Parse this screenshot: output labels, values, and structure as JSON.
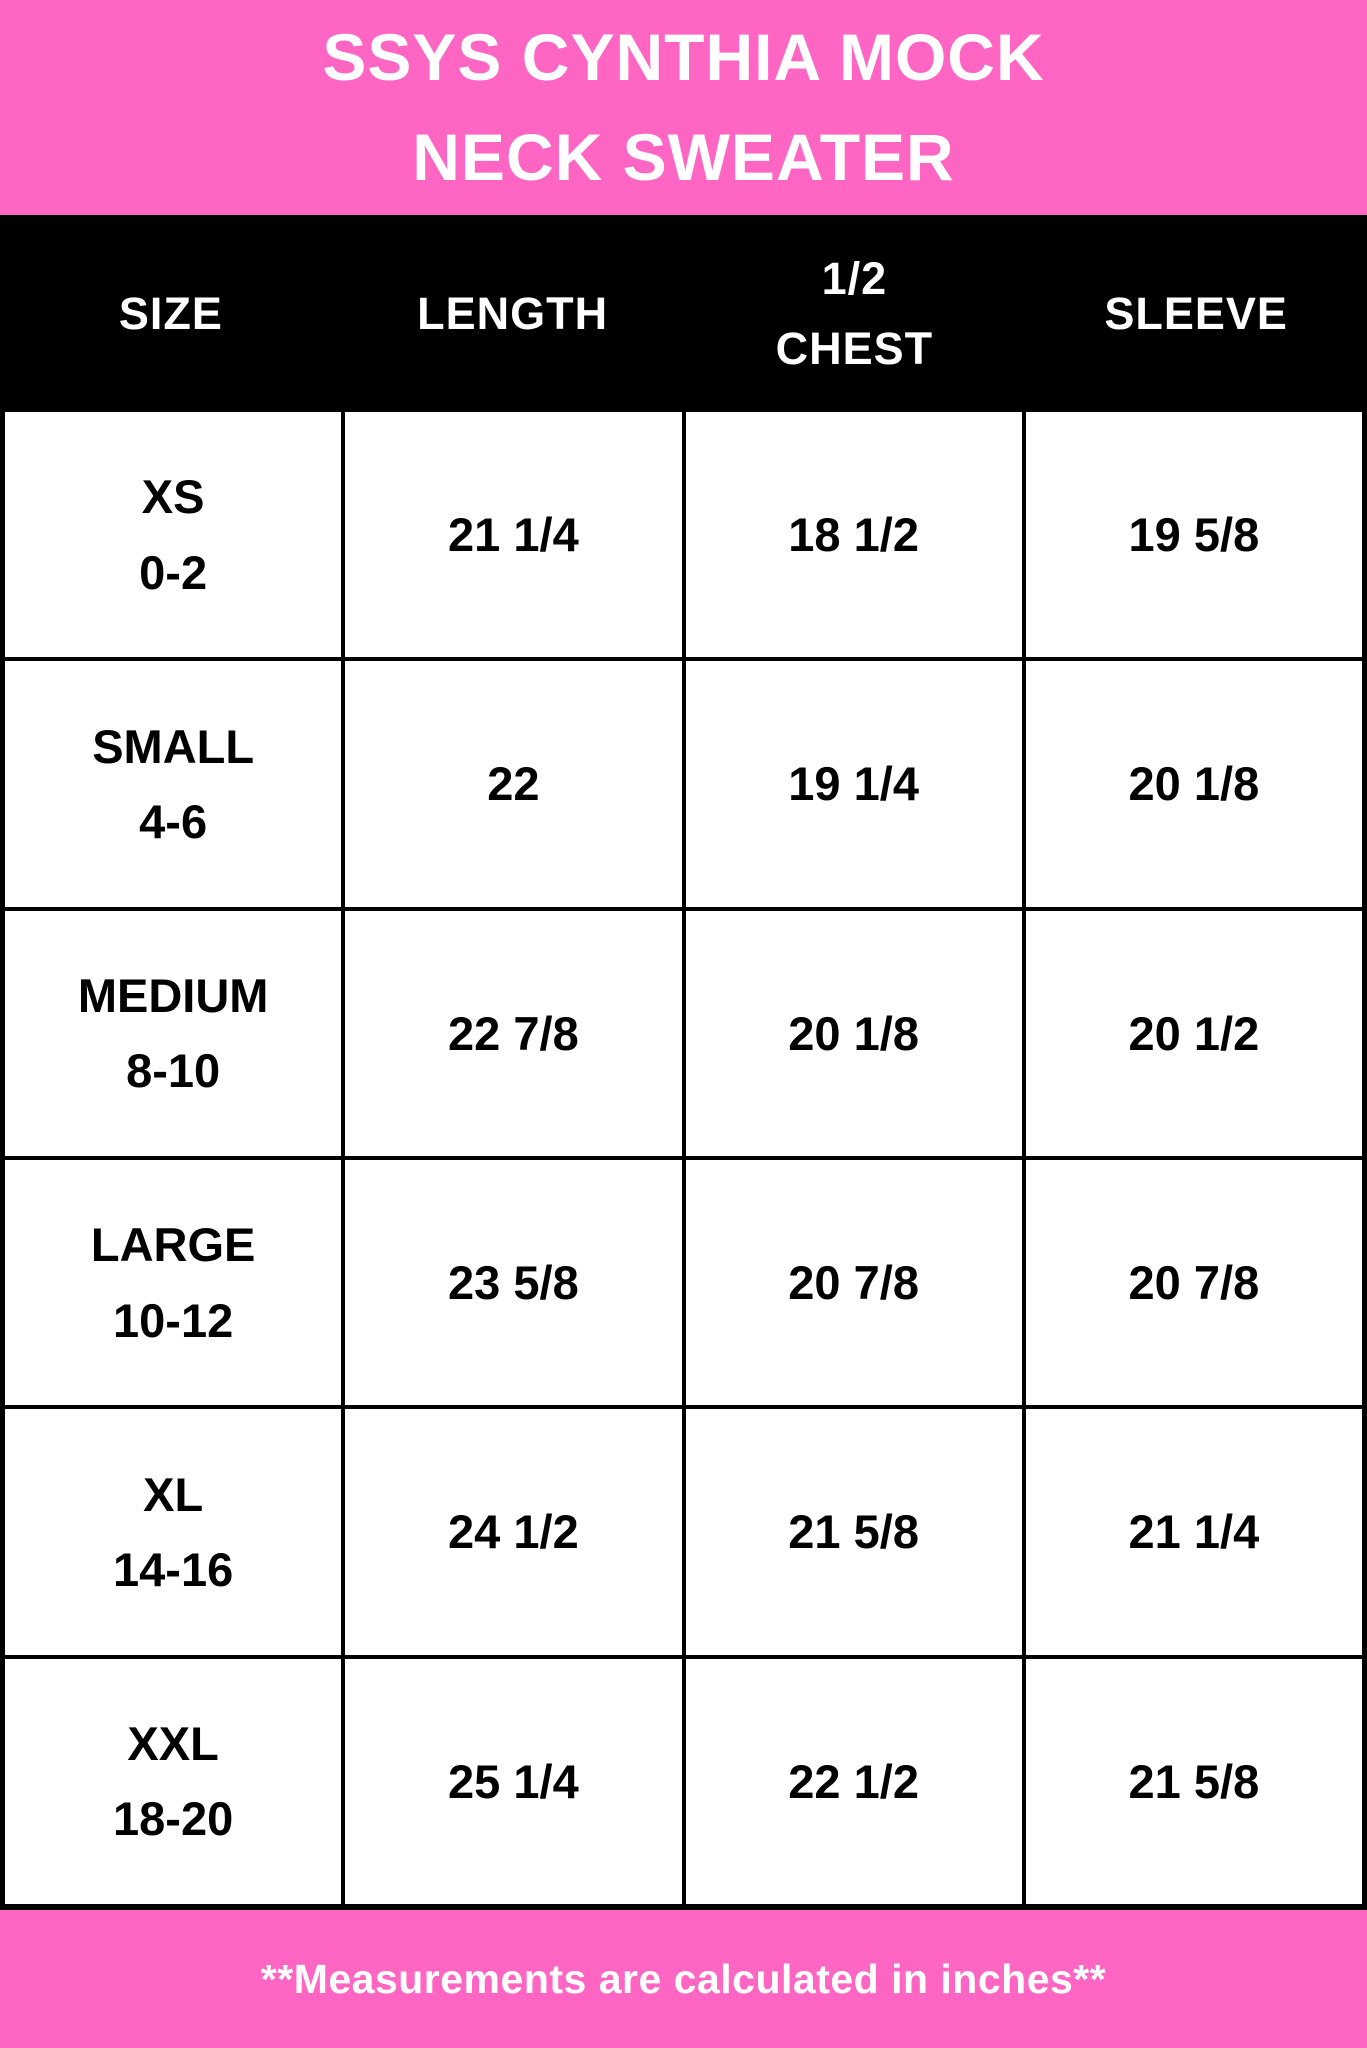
{
  "title": {
    "line1": "SSYS CYNTHIA MOCK",
    "line2": "NECK SWEATER"
  },
  "footer": {
    "note": "**Measurements are calculated in inches**"
  },
  "colors": {
    "pink": "#FF66C4",
    "black": "#000000",
    "white": "#FFFFFF",
    "text": "#000000"
  },
  "chart_data": {
    "type": "table",
    "title": "SSYS CYNTHIA MOCK NECK SWEATER",
    "units": "inches",
    "columns": [
      {
        "label": "SIZE"
      },
      {
        "label": "LENGTH"
      },
      {
        "label": "1/2",
        "label2": "CHEST"
      },
      {
        "label": "SLEEVE"
      }
    ],
    "rows": [
      {
        "size": "XS",
        "size_range": "0-2",
        "length": "21 1/4",
        "half_chest": "18 1/2",
        "sleeve": "19 5/8"
      },
      {
        "size": "SMALL",
        "size_range": "4-6",
        "length": "22",
        "half_chest": "19 1/4",
        "sleeve": "20 1/8"
      },
      {
        "size": "MEDIUM",
        "size_range": "8-10",
        "length": "22 7/8",
        "half_chest": "20 1/8",
        "sleeve": "20 1/2"
      },
      {
        "size": "LARGE",
        "size_range": "10-12",
        "length": "23 5/8",
        "half_chest": "20 7/8",
        "sleeve": "20 7/8"
      },
      {
        "size": "XL",
        "size_range": "14-16",
        "length": "24 1/2",
        "half_chest": "21 5/8",
        "sleeve": "21 1/4"
      },
      {
        "size": "XXL",
        "size_range": "18-20",
        "length": "25 1/4",
        "half_chest": "22 1/2",
        "sleeve": "21 5/8"
      }
    ]
  }
}
